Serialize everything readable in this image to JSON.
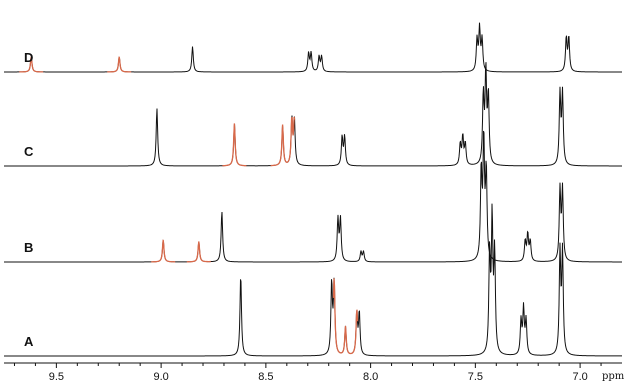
{
  "chart_data": {
    "type": "line",
    "title": "",
    "xlabel": "ppm",
    "ylabel": "",
    "x_reversed": true,
    "xlim": [
      9.75,
      6.8
    ],
    "grid": false,
    "legend": "none",
    "x_ticks": [
      {
        "value": 9.5,
        "label": "9.5"
      },
      {
        "value": 9.0,
        "label": "9.0"
      },
      {
        "value": 8.5,
        "label": "8.5"
      },
      {
        "value": 8.0,
        "label": "8.0"
      },
      {
        "value": 7.5,
        "label": "7.5"
      },
      {
        "value": 7.0,
        "label": "7.0"
      }
    ],
    "colors": {
      "spectrum": "#111111",
      "highlight": "#d9694a"
    },
    "series": [
      {
        "name": "D",
        "peaks": [
          {
            "ppm": 9.62,
            "height": 0.45,
            "mult": 1,
            "color": "highlight"
          },
          {
            "ppm": 9.2,
            "height": 0.45,
            "mult": 1,
            "color": "highlight"
          },
          {
            "ppm": 8.85,
            "height": 0.75,
            "mult": 1,
            "color": "spectrum"
          },
          {
            "ppm": 8.29,
            "height": 0.55,
            "mult": 2,
            "color": "spectrum"
          },
          {
            "ppm": 8.24,
            "height": 0.45,
            "mult": 2,
            "color": "spectrum"
          },
          {
            "ppm": 7.48,
            "height": 1.25,
            "mult": 3,
            "color": "spectrum"
          },
          {
            "ppm": 7.06,
            "height": 1.0,
            "mult": 2,
            "color": "spectrum"
          }
        ]
      },
      {
        "name": "C",
        "peaks": [
          {
            "ppm": 9.02,
            "height": 1.7,
            "mult": 1,
            "color": "spectrum"
          },
          {
            "ppm": 8.65,
            "height": 1.25,
            "mult": 1,
            "color": "highlight"
          },
          {
            "ppm": 8.42,
            "height": 1.2,
            "mult": 1,
            "color": "highlight"
          },
          {
            "ppm": 8.37,
            "height": 1.35,
            "mult": 2,
            "color": "spectrum"
          },
          {
            "ppm": 8.13,
            "height": 0.85,
            "mult": 2,
            "color": "spectrum"
          },
          {
            "ppm": 7.56,
            "height": 0.85,
            "mult": 3,
            "color": "spectrum"
          },
          {
            "ppm": 7.45,
            "height": 2.7,
            "mult": 3,
            "color": "spectrum"
          },
          {
            "ppm": 7.09,
            "height": 2.1,
            "mult": 2,
            "color": "spectrum"
          }
        ]
      },
      {
        "name": "B",
        "peaks": [
          {
            "ppm": 8.99,
            "height": 0.65,
            "mult": 1,
            "color": "highlight"
          },
          {
            "ppm": 8.82,
            "height": 0.6,
            "mult": 1,
            "color": "highlight"
          },
          {
            "ppm": 8.71,
            "height": 1.5,
            "mult": 1,
            "color": "spectrum"
          },
          {
            "ppm": 8.15,
            "height": 1.25,
            "mult": 2,
            "color": "spectrum"
          },
          {
            "ppm": 8.04,
            "height": 0.3,
            "mult": 2,
            "color": "spectrum"
          },
          {
            "ppm": 7.46,
            "height": 3.5,
            "mult": 3,
            "color": "spectrum"
          },
          {
            "ppm": 7.25,
            "height": 0.8,
            "mult": 3,
            "color": "spectrum"
          },
          {
            "ppm": 7.09,
            "height": 2.1,
            "mult": 2,
            "color": "spectrum"
          }
        ]
      },
      {
        "name": "A",
        "peaks": [
          {
            "ppm": 8.62,
            "height": 2.4,
            "mult": 1,
            "color": "spectrum"
          },
          {
            "ppm": 8.18,
            "height": 2.1,
            "mult": 2,
            "color": "spectrum"
          },
          {
            "ppm": 8.12,
            "height": 0.85,
            "mult": 1,
            "color": "highlight"
          },
          {
            "ppm": 8.06,
            "height": 1.25,
            "mult": 2,
            "color": "spectrum"
          },
          {
            "ppm": 7.42,
            "height": 3.9,
            "mult": 3,
            "color": "spectrum"
          },
          {
            "ppm": 7.27,
            "height": 1.35,
            "mult": 3,
            "color": "spectrum"
          },
          {
            "ppm": 7.09,
            "height": 3.0,
            "mult": 2,
            "color": "spectrum"
          }
        ]
      }
    ]
  }
}
